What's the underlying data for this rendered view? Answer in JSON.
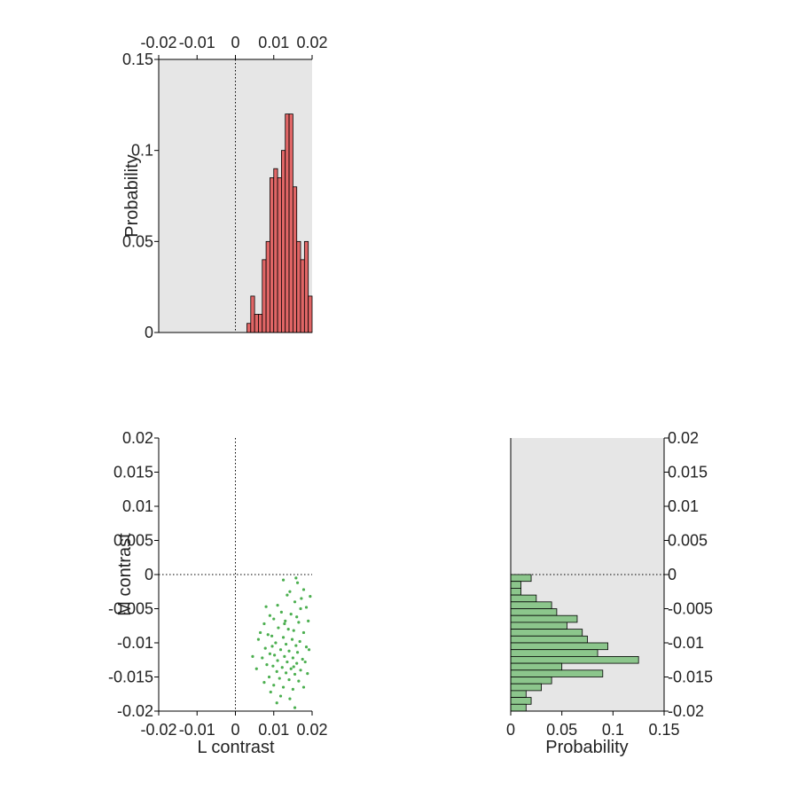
{
  "colors": {
    "axes_background": "#e6e6e6",
    "l_histogram_fill": "#e06666",
    "m_histogram_fill": "#8cc68c",
    "scatter_points": "#4caf50",
    "edge": "#000000",
    "text": "#222222"
  },
  "chart_data": [
    {
      "id": "l-histogram",
      "type": "bar",
      "orientation": "vertical",
      "xlim": [
        -0.02,
        0.02
      ],
      "ylim": [
        0,
        0.15
      ],
      "xticks": [
        "-0.02",
        "-0.01",
        "0",
        "0.01",
        "0.02"
      ],
      "yticks": [
        "0",
        "0.05",
        "0.1",
        "0.15"
      ],
      "x_tick_position": "top",
      "xlabel": "",
      "ylabel": "Probability",
      "background": "gray",
      "reference_line_x": 0,
      "bin_width": 0.001,
      "bins": [
        {
          "x0": 0.003,
          "p": 0.005
        },
        {
          "x0": 0.004,
          "p": 0.02
        },
        {
          "x0": 0.005,
          "p": 0.01
        },
        {
          "x0": 0.006,
          "p": 0.01
        },
        {
          "x0": 0.007,
          "p": 0.04
        },
        {
          "x0": 0.008,
          "p": 0.05
        },
        {
          "x0": 0.009,
          "p": 0.085
        },
        {
          "x0": 0.01,
          "p": 0.09
        },
        {
          "x0": 0.011,
          "p": 0.085
        },
        {
          "x0": 0.012,
          "p": 0.1
        },
        {
          "x0": 0.013,
          "p": 0.12
        },
        {
          "x0": 0.014,
          "p": 0.12
        },
        {
          "x0": 0.015,
          "p": 0.08
        },
        {
          "x0": 0.016,
          "p": 0.05
        },
        {
          "x0": 0.017,
          "p": 0.04
        },
        {
          "x0": 0.018,
          "p": 0.05
        },
        {
          "x0": 0.019,
          "p": 0.02
        }
      ]
    },
    {
      "id": "lm-scatter",
      "type": "scatter",
      "xlim": [
        -0.02,
        0.02
      ],
      "ylim": [
        -0.02,
        0.02
      ],
      "xticks": [
        "-0.02",
        "-0.01",
        "0",
        "0.01",
        "0.02"
      ],
      "yticks": [
        "-0.02",
        "-0.015",
        "-0.01",
        "-0.005",
        "0",
        "0.005",
        "0.01",
        "0.015",
        "0.02"
      ],
      "xlabel": "L contrast",
      "ylabel": "M contrast",
      "reference_line_x": 0,
      "reference_line_y": 0,
      "points": [
        [
          0.0158,
          -0.0005
        ],
        [
          0.0162,
          -0.0012
        ],
        [
          0.0125,
          -0.0008
        ],
        [
          0.0178,
          -0.0022
        ],
        [
          0.0195,
          -0.0032
        ],
        [
          0.0142,
          -0.0025
        ],
        [
          0.0135,
          -0.003
        ],
        [
          0.011,
          -0.0045
        ],
        [
          0.0155,
          -0.004
        ],
        [
          0.017,
          -0.005
        ],
        [
          0.0185,
          -0.0048
        ],
        [
          0.008,
          -0.0047
        ],
        [
          0.012,
          -0.0055
        ],
        [
          0.0145,
          -0.0058
        ],
        [
          0.016,
          -0.0062
        ],
        [
          0.009,
          -0.006
        ],
        [
          0.01,
          -0.0065
        ],
        [
          0.013,
          -0.0068
        ],
        [
          0.0165,
          -0.007
        ],
        [
          0.019,
          -0.0068
        ],
        [
          0.0075,
          -0.0072
        ],
        [
          0.0112,
          -0.0078
        ],
        [
          0.0138,
          -0.008
        ],
        [
          0.0152,
          -0.0082
        ],
        [
          0.0178,
          -0.0085
        ],
        [
          0.0085,
          -0.0088
        ],
        [
          0.0095,
          -0.009
        ],
        [
          0.0125,
          -0.0092
        ],
        [
          0.0148,
          -0.0095
        ],
        [
          0.0168,
          -0.0098
        ],
        [
          0.006,
          -0.0095
        ],
        [
          0.0105,
          -0.01
        ],
        [
          0.0132,
          -0.0102
        ],
        [
          0.0158,
          -0.0104
        ],
        [
          0.0185,
          -0.0106
        ],
        [
          0.0078,
          -0.0108
        ],
        [
          0.0118,
          -0.011
        ],
        [
          0.014,
          -0.0112
        ],
        [
          0.0162,
          -0.0114
        ],
        [
          0.0192,
          -0.011
        ],
        [
          0.009,
          -0.0116
        ],
        [
          0.0102,
          -0.0118
        ],
        [
          0.0128,
          -0.012
        ],
        [
          0.015,
          -0.0122
        ],
        [
          0.0175,
          -0.0124
        ],
        [
          0.007,
          -0.0122
        ],
        [
          0.011,
          -0.0126
        ],
        [
          0.0135,
          -0.0128
        ],
        [
          0.016,
          -0.013
        ],
        [
          0.0182,
          -0.0128
        ],
        [
          0.0082,
          -0.0132
        ],
        [
          0.0098,
          -0.0134
        ],
        [
          0.0122,
          -0.0136
        ],
        [
          0.0145,
          -0.0138
        ],
        [
          0.017,
          -0.014
        ],
        [
          0.0055,
          -0.0138
        ],
        [
          0.0108,
          -0.0142
        ],
        [
          0.0132,
          -0.0144
        ],
        [
          0.0155,
          -0.0146
        ],
        [
          0.0188,
          -0.0145
        ],
        [
          0.0088,
          -0.015
        ],
        [
          0.0115,
          -0.0152
        ],
        [
          0.014,
          -0.0154
        ],
        [
          0.0165,
          -0.0156
        ],
        [
          0.0075,
          -0.0158
        ],
        [
          0.01,
          -0.0162
        ],
        [
          0.0125,
          -0.0165
        ],
        [
          0.015,
          -0.0168
        ],
        [
          0.0178,
          -0.0165
        ],
        [
          0.0092,
          -0.0172
        ],
        [
          0.0118,
          -0.0178
        ],
        [
          0.0142,
          -0.0182
        ],
        [
          0.0108,
          -0.0188
        ],
        [
          0.0155,
          -0.0195
        ],
        [
          0.0045,
          -0.012
        ],
        [
          0.0065,
          -0.0085
        ],
        [
          0.0172,
          -0.0035
        ],
        [
          0.0128,
          -0.0072
        ],
        [
          0.0096,
          -0.0105
        ],
        [
          0.0152,
          -0.0135
        ]
      ]
    },
    {
      "id": "m-histogram",
      "type": "bar",
      "orientation": "horizontal",
      "xlim": [
        0,
        0.15
      ],
      "ylim": [
        -0.02,
        0.02
      ],
      "xticks": [
        "0",
        "0.05",
        "0.1",
        "0.15"
      ],
      "yticks": [
        "-0.02",
        "-0.015",
        "-0.01",
        "-0.005",
        "0",
        "0.005",
        "0.01",
        "0.015",
        "0.02"
      ],
      "y_tick_position": "right",
      "xlabel": "Probability",
      "ylabel": "",
      "background": "gray",
      "reference_line_y": 0,
      "bin_width": 0.001,
      "bins": [
        {
          "y0": -0.001,
          "p": 0.02
        },
        {
          "y0": -0.002,
          "p": 0.01
        },
        {
          "y0": -0.003,
          "p": 0.01
        },
        {
          "y0": -0.004,
          "p": 0.025
        },
        {
          "y0": -0.005,
          "p": 0.04
        },
        {
          "y0": -0.006,
          "p": 0.045
        },
        {
          "y0": -0.007,
          "p": 0.065
        },
        {
          "y0": -0.008,
          "p": 0.055
        },
        {
          "y0": -0.009,
          "p": 0.07
        },
        {
          "y0": -0.01,
          "p": 0.075
        },
        {
          "y0": -0.011,
          "p": 0.095
        },
        {
          "y0": -0.012,
          "p": 0.085
        },
        {
          "y0": -0.013,
          "p": 0.125
        },
        {
          "y0": -0.014,
          "p": 0.05
        },
        {
          "y0": -0.015,
          "p": 0.09
        },
        {
          "y0": -0.016,
          "p": 0.04
        },
        {
          "y0": -0.017,
          "p": 0.03
        },
        {
          "y0": -0.018,
          "p": 0.015
        },
        {
          "y0": -0.019,
          "p": 0.02
        },
        {
          "y0": -0.02,
          "p": 0.015
        }
      ]
    }
  ]
}
